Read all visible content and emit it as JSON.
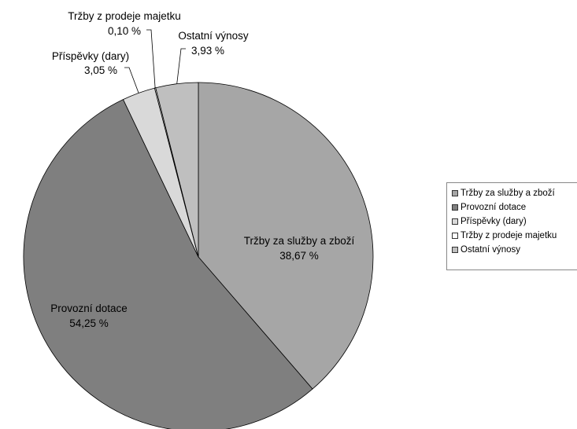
{
  "chart_data": {
    "type": "pie",
    "start_angle_deg": 0,
    "direction": "clockwise",
    "slices": [
      {
        "name": "Tržby za služby a zboží",
        "value": 38.67,
        "value_label": "38,67 %",
        "color": "#a6a6a6"
      },
      {
        "name": "Provozní dotace",
        "value": 54.25,
        "value_label": "54,25 %",
        "color": "#7f7f7f"
      },
      {
        "name": "Příspěvky (dary)",
        "value": 3.05,
        "value_label": "3,05 %",
        "color": "#d9d9d9"
      },
      {
        "name": "Tržby z prodeje majetku",
        "value": 0.1,
        "value_label": "0,10 %",
        "color": "#f2f2f2"
      },
      {
        "name": "Ostatní výnosy",
        "value": 3.93,
        "value_label": "3,93 %",
        "color": "#bfbfbf"
      }
    ],
    "legend_position": "right",
    "legend": [
      "Tržby za služby a zboží",
      "Provozní dotace",
      "Příspěvky (dary)",
      "Tržby z prodeje majetku",
      "Ostatní výnosy"
    ]
  }
}
